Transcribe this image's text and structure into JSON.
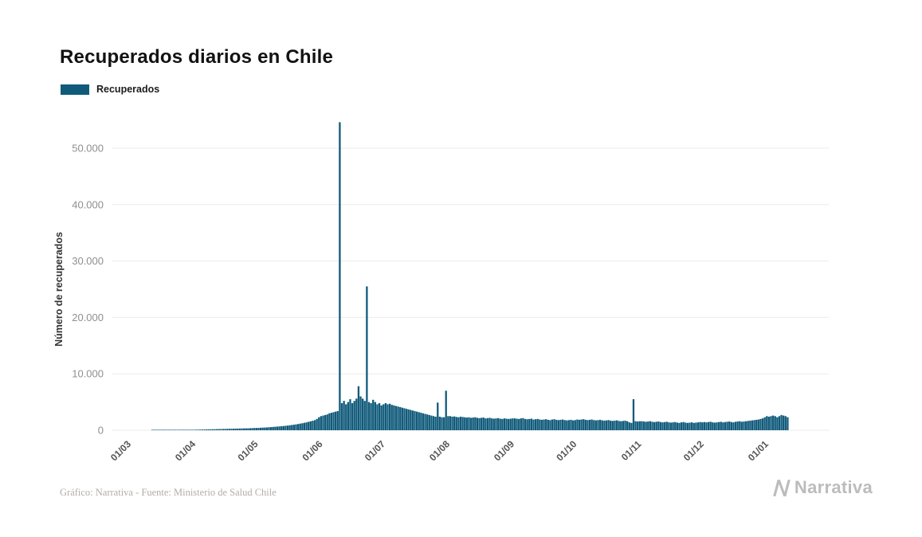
{
  "page": {
    "title": "Recuperados diarios en Chile",
    "footer_credit": "Gráfico: Narrativa - Fuente: Ministerio de Salud Chile",
    "brand": "Narrativa"
  },
  "legend": {
    "label": "Recuperados",
    "color": "#105a7a"
  },
  "chart_data": {
    "type": "bar",
    "title": "Recuperados diarios en Chile",
    "xlabel": "",
    "ylabel": "Número de recuperados",
    "ylim": [
      0,
      50000
    ],
    "grid": true,
    "legend_position": "top-left",
    "bar_color": "#105a7a",
    "grid_color": "#ebebeb",
    "yticks": [
      0,
      10000,
      20000,
      30000,
      40000,
      50000
    ],
    "ytick_labels": [
      "0",
      "10.000",
      "20.000",
      "30.000",
      "40.000",
      "50.000"
    ],
    "xtick_labels": [
      "01/03",
      "01/04",
      "01/05",
      "01/06",
      "01/07",
      "01/08",
      "01/09",
      "01/10",
      "01/11",
      "01/12",
      "01/01"
    ],
    "xtick_days": [
      0,
      31,
      61,
      92,
      122,
      153,
      184,
      214,
      245,
      275,
      306
    ],
    "series": [
      {
        "name": "Recuperados",
        "start_label": "01/03",
        "values": [
          0,
          0,
          0,
          0,
          0,
          0,
          0,
          0,
          0,
          0,
          2,
          3,
          4,
          5,
          6,
          8,
          10,
          12,
          15,
          18,
          22,
          26,
          30,
          35,
          40,
          46,
          52,
          60,
          68,
          76,
          85,
          95,
          105,
          115,
          125,
          135,
          145,
          155,
          165,
          175,
          185,
          195,
          205,
          215,
          225,
          235,
          245,
          255,
          265,
          275,
          285,
          295,
          305,
          315,
          325,
          335,
          345,
          360,
          375,
          390,
          405,
          420,
          440,
          460,
          480,
          500,
          530,
          560,
          590,
          620,
          650,
          680,
          710,
          750,
          790,
          830,
          880,
          930,
          980,
          1040,
          1100,
          1170,
          1240,
          1320,
          1400,
          1490,
          1580,
          1680,
          1790,
          2000,
          2300,
          2500,
          2600,
          2700,
          2800,
          3000,
          3100,
          3200,
          3300,
          3400,
          54600,
          4800,
          5200,
          4600,
          5000,
          5500,
          4800,
          5200,
          5600,
          7800,
          6000,
          5600,
          5200,
          25500,
          5000,
          4800,
          5400,
          5000,
          4600,
          4800,
          4400,
          4600,
          4800,
          4600,
          4700,
          4500,
          4400,
          4300,
          4200,
          4100,
          4000,
          3900,
          3800,
          3700,
          3600,
          3500,
          3400,
          3300,
          3200,
          3100,
          3000,
          2900,
          2800,
          2700,
          2600,
          2500,
          2400,
          4900,
          2400,
          2300,
          2300,
          7000,
          2500,
          2500,
          2400,
          2450,
          2350,
          2300,
          2400,
          2350,
          2300,
          2250,
          2300,
          2200,
          2250,
          2300,
          2200,
          2150,
          2200,
          2250,
          2100,
          2150,
          2200,
          2100,
          2050,
          2100,
          2150,
          2050,
          2000,
          2100,
          2050,
          2000,
          2050,
          2100,
          2100,
          2050,
          2000,
          2100,
          2150,
          2000,
          1950,
          2000,
          2050,
          1900,
          1950,
          2000,
          1900,
          1850,
          1900,
          1950,
          1850,
          1800,
          1900,
          1950,
          1850,
          1800,
          1850,
          1900,
          1800,
          1750,
          1800,
          1850,
          1750,
          1800,
          1900,
          1850,
          1900,
          1950,
          1850,
          1800,
          1850,
          1900,
          1800,
          1750,
          1800,
          1850,
          1750,
          1700,
          1750,
          1800,
          1700,
          1650,
          1700,
          1750,
          1650,
          1600,
          1650,
          1700,
          1600,
          1400,
          1300,
          5500,
          1600,
          1550,
          1600,
          1600,
          1550,
          1500,
          1550,
          1600,
          1500,
          1450,
          1500,
          1550,
          1450,
          1400,
          1450,
          1500,
          1400,
          1350,
          1400,
          1450,
          1350,
          1300,
          1400,
          1450,
          1350,
          1300,
          1350,
          1400,
          1300,
          1350,
          1400,
          1450,
          1400,
          1450,
          1400,
          1450,
          1500,
          1400,
          1350,
          1400,
          1450,
          1500,
          1400,
          1450,
          1500,
          1550,
          1450,
          1400,
          1500,
          1550,
          1600,
          1500,
          1550,
          1600,
          1650,
          1700,
          1750,
          1800,
          1850,
          1900,
          2000,
          2100,
          2300,
          2500,
          2400,
          2500,
          2600,
          2500,
          2300,
          2500,
          2700,
          2600,
          2500,
          2300
        ]
      }
    ]
  }
}
